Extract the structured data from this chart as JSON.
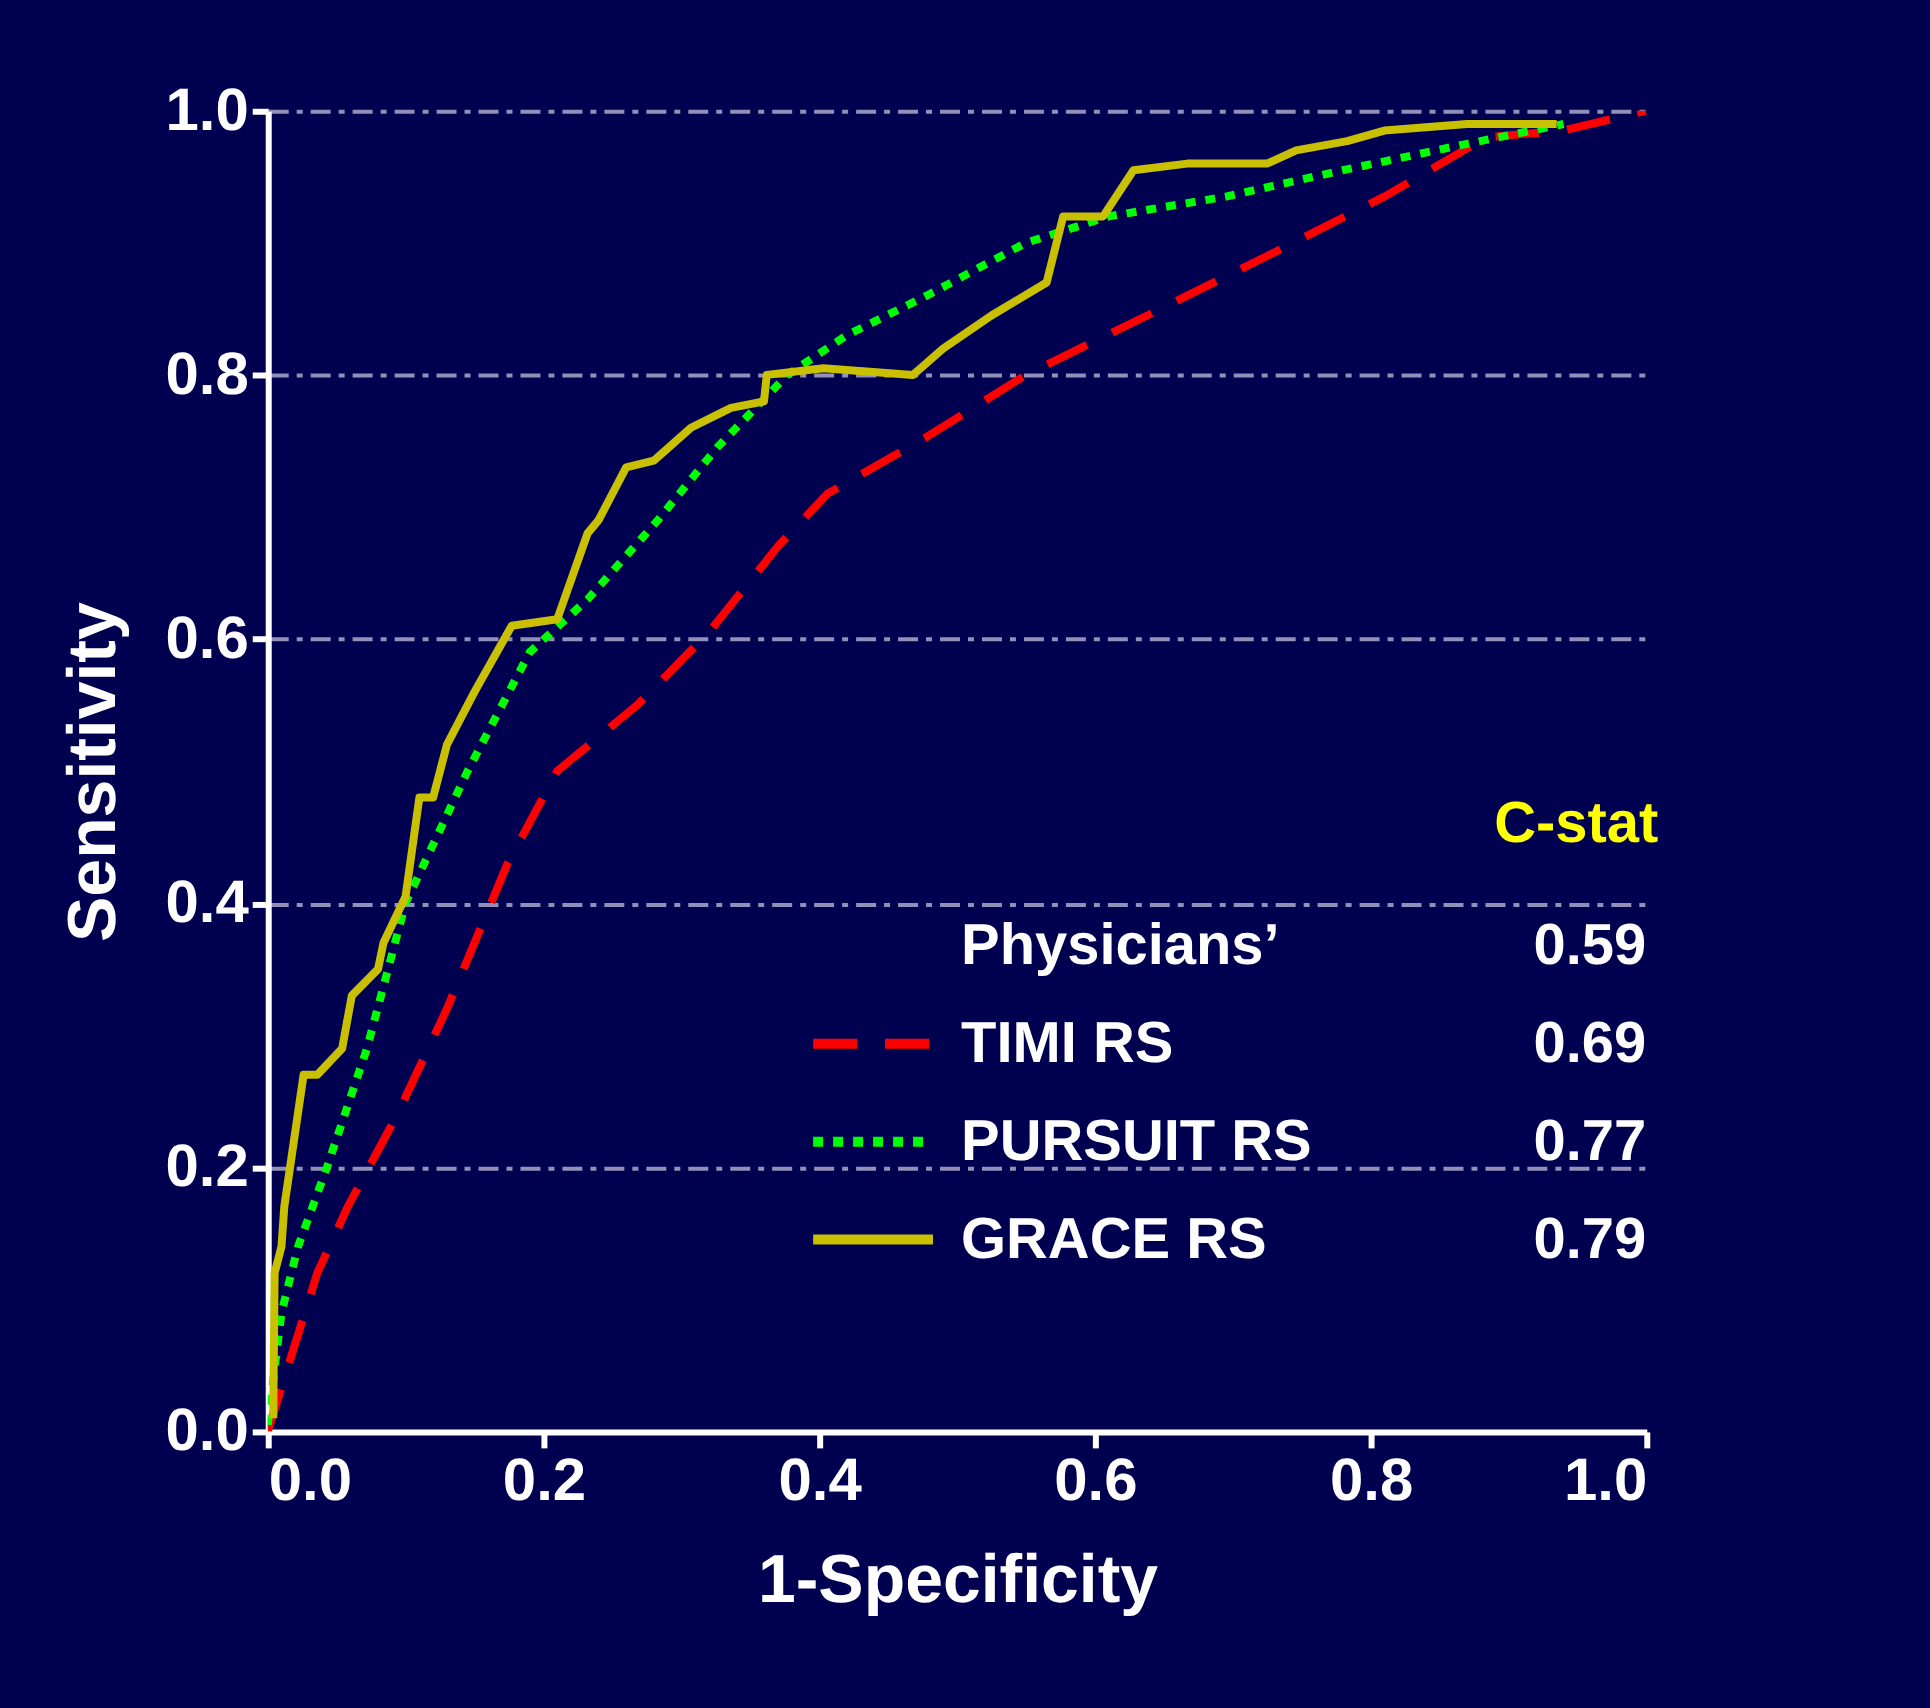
{
  "chart_data": {
    "type": "line",
    "xlabel": "1-Specificity",
    "ylabel": "Sensitivity",
    "xlim": [
      0,
      1
    ],
    "ylim": [
      0,
      1
    ],
    "xticks": [
      {
        "value": 0,
        "label": "0.0"
      },
      0.2,
      0.4,
      0.6,
      0.8,
      {
        "value": 1,
        "label": "1.0"
      }
    ],
    "yticks": [
      {
        "value": 0,
        "label": "0.0"
      },
      0.2,
      0.4,
      0.6,
      0.8,
      {
        "value": 1,
        "label": "1.0"
      }
    ],
    "grid": "y",
    "legend": "bottom right",
    "annotations": [
      "C-stat",
      "Physicians’",
      "0.59",
      "0.69",
      "0.77",
      "0.79"
    ],
    "series": [
      {
        "name": "TIMI RS",
        "color": "#ff0000",
        "line_style": "dashed",
        "x": [
          0,
          0.015,
          0.036,
          0.058,
          0.094,
          0.13,
          0.174,
          0.21,
          0.268,
          0.32,
          0.37,
          0.406,
          0.478,
          0.55,
          0.638,
          0.725,
          0.81,
          0.884,
          0.94,
          1
        ],
        "values": [
          0,
          0.05,
          0.12,
          0.17,
          0.24,
          0.32,
          0.43,
          0.5,
          0.55,
          0.605,
          0.67,
          0.71,
          0.753,
          0.8,
          0.845,
          0.89,
          0.935,
          0.98,
          0.985,
          1
        ]
      },
      {
        "name": "PURSUIT RS",
        "color": "#00ff00",
        "line_style": "dotted",
        "x": [
          0,
          0.01,
          0.022,
          0.043,
          0.072,
          0.1,
          0.145,
          0.19,
          0.232,
          0.283,
          0.326,
          0.377,
          0.42,
          0.478,
          0.55,
          0.61,
          0.695,
          0.78,
          0.87,
          0.94
        ],
        "values": [
          0.005,
          0.09,
          0.14,
          0.2,
          0.29,
          0.4,
          0.5,
          0.59,
          0.63,
          0.69,
          0.745,
          0.8,
          0.83,
          0.86,
          0.9,
          0.92,
          0.935,
          0.955,
          0.975,
          0.99
        ]
      },
      {
        "name": "GRACE RS",
        "color": "#c8c000",
        "line_style": "solid",
        "x": [
          0.004,
          0.005,
          0.01,
          0.012,
          0.026,
          0.036,
          0.054,
          0.061,
          0.08,
          0.084,
          0.1,
          0.11,
          0.12,
          0.13,
          0.15,
          0.177,
          0.21,
          0.232,
          0.24,
          0.26,
          0.28,
          0.307,
          0.336,
          0.36,
          0.362,
          0.403,
          0.468,
          0.49,
          0.525,
          0.565,
          0.577,
          0.606,
          0.628,
          0.667,
          0.725,
          0.746,
          0.783,
          0.81,
          0.87,
          0.935
        ],
        "values": [
          0.01,
          0.12,
          0.14,
          0.17,
          0.27,
          0.27,
          0.29,
          0.33,
          0.35,
          0.37,
          0.405,
          0.48,
          0.48,
          0.52,
          0.56,
          0.61,
          0.615,
          0.68,
          0.69,
          0.73,
          0.735,
          0.76,
          0.775,
          0.78,
          0.8,
          0.805,
          0.8,
          0.82,
          0.845,
          0.87,
          0.92,
          0.92,
          0.955,
          0.96,
          0.96,
          0.97,
          0.977,
          0.985,
          0.99,
          0.99
        ]
      }
    ]
  }
}
